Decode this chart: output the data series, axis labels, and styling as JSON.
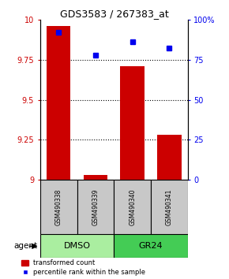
{
  "title": "GDS3583 / 267383_at",
  "samples": [
    "GSM490338",
    "GSM490339",
    "GSM490340",
    "GSM490341"
  ],
  "red_values": [
    9.96,
    9.03,
    9.71,
    9.28
  ],
  "blue_values": [
    92,
    78,
    86,
    82
  ],
  "ylim_left": [
    9.0,
    10.0
  ],
  "ylim_right": [
    0,
    100
  ],
  "yticks_left": [
    9.0,
    9.25,
    9.5,
    9.75,
    10.0
  ],
  "yticks_right": [
    0,
    25,
    50,
    75,
    100
  ],
  "ytick_labels_left": [
    "9",
    "9.25",
    "9.5",
    "9.75",
    "10"
  ],
  "ytick_labels_right": [
    "0",
    "25",
    "50",
    "75",
    "100%"
  ],
  "groups": [
    {
      "label": "DMSO",
      "samples": [
        0,
        1
      ],
      "color": "#AAEEA0"
    },
    {
      "label": "GR24",
      "samples": [
        2,
        3
      ],
      "color": "#44CC55"
    }
  ],
  "bar_color": "#CC0000",
  "dot_color": "#0000EE",
  "bar_width": 0.65,
  "label_bar": "transformed count",
  "label_dot": "percentile rank within the sample",
  "agent_label": "agent",
  "sample_box_color": "#C8C8C8",
  "title_fontsize": 9,
  "tick_fontsize": 7,
  "legend_fontsize": 6
}
